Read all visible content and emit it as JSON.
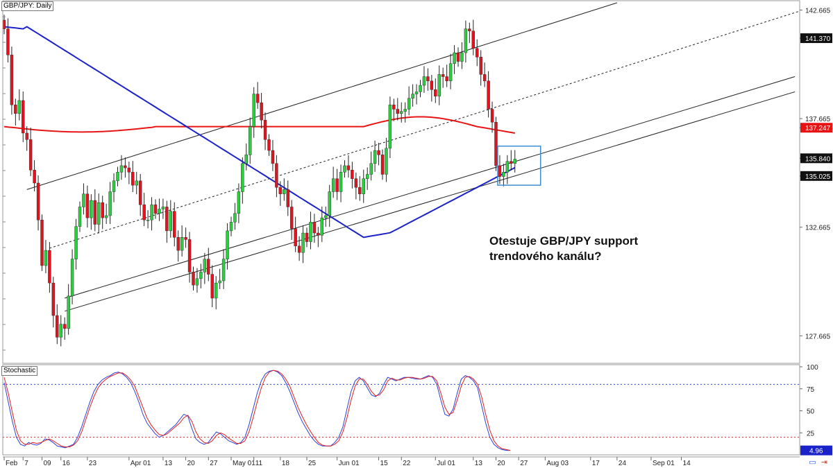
{
  "header": {
    "symbol_label": "GBP/JPY: Daily"
  },
  "annotation": {
    "line1": "Otestuje GBP/JPY support",
    "line2": "trendového kanálu?"
  },
  "stochastic_panel": {
    "label": "Stochastic"
  },
  "icons": {
    "layers": "layers-icon",
    "arrow": "arrow-icon"
  },
  "colors": {
    "bull": "#2ecc40",
    "bear": "#e0141e",
    "ma_fast": "#1a23c9",
    "ma_slow": "#e81414",
    "stoch_k": "#2a3fe0",
    "stoch_d": "#e01e1e",
    "highlight_box": "#3b8fd6",
    "channel": "#222222"
  },
  "chart_data": [
    {
      "type": "candlestick",
      "title": "GBP/JPY: Daily",
      "ylim": [
        126.4,
        143.0
      ],
      "y_ticks": [
        "142.665",
        "141.370",
        "137.665",
        "137.247",
        "135.840",
        "135.025",
        "132.665",
        "127.665"
      ],
      "y_tick_values": [
        142.665,
        141.37,
        137.665,
        137.247,
        135.84,
        135.025,
        132.665,
        127.665
      ],
      "price_tags": [
        {
          "label": "141.370",
          "value": 141.37,
          "style": "dark"
        },
        {
          "label": "137.247",
          "value": 137.247,
          "style": "red"
        },
        {
          "label": "135.840",
          "value": 135.84,
          "style": "dark"
        },
        {
          "label": "135.025",
          "value": 135.025,
          "style": "dark"
        }
      ],
      "x_ticks": [
        "Feb",
        "7",
        "09",
        "16",
        "23",
        "Apr 01",
        "13",
        "20",
        "27",
        "May 01",
        "11",
        "18",
        "25",
        "Jun 01",
        "15",
        "22",
        "Jul 01",
        "13",
        "20",
        "27",
        "Aug 03",
        "17",
        "24",
        "Sep 01",
        "14"
      ],
      "x_tick_index": [
        0,
        5,
        10,
        15,
        22,
        33,
        42,
        48,
        54,
        60,
        66,
        73,
        80,
        88,
        99,
        105,
        114,
        124,
        130,
        136,
        143,
        155,
        162,
        171,
        179
      ],
      "closes": [
        141.8,
        140.6,
        138.3,
        137.9,
        138.5,
        137.0,
        136.7,
        135.3,
        134.7,
        133.0,
        130.9,
        131.6,
        130.1,
        128.6,
        127.6,
        128.2,
        128.0,
        129.5,
        131.2,
        132.7,
        133.6,
        134.2,
        133.1,
        133.9,
        132.8,
        133.8,
        133.1,
        133.2,
        134.3,
        134.8,
        135.2,
        135.5,
        135.4,
        135.2,
        134.6,
        134.8,
        133.7,
        133.0,
        133.0,
        133.7,
        133.3,
        133.5,
        133.6,
        132.5,
        133.4,
        132.2,
        131.6,
        132.2,
        132.1,
        130.6,
        130.0,
        130.3,
        130.6,
        131.2,
        130.5,
        129.4,
        130.1,
        130.2,
        131.2,
        132.5,
        132.9,
        133.3,
        134.3,
        135.6,
        136.0,
        137.3,
        138.8,
        138.4,
        137.6,
        136.7,
        136.2,
        135.6,
        134.5,
        134.2,
        134.4,
        133.6,
        132.6,
        131.8,
        131.5,
        132.4,
        132.0,
        132.9,
        132.4,
        132.3,
        133.1,
        133.2,
        134.3,
        134.9,
        134.3,
        135.2,
        135.5,
        135.3,
        134.9,
        134.5,
        134.2,
        134.9,
        135.1,
        135.6,
        136.2,
        136.0,
        135.1,
        136.3,
        138.3,
        138.1,
        137.9,
        138.0,
        138.1,
        138.6,
        138.8,
        138.9,
        139.2,
        139.6,
        139.4,
        139.0,
        138.7,
        139.7,
        139.6,
        139.4,
        140.2,
        140.7,
        140.3,
        140.7,
        141.8,
        141.7,
        140.9,
        140.5,
        139.7,
        139.4,
        138.1,
        137.5,
        135.5,
        135.0,
        135.2,
        135.7,
        135.6,
        135.8
      ],
      "opens_rule": "each candle opens at the previous candle's close",
      "sma_fast": {
        "name": "",
        "color": "#1a23c9"
      },
      "sma_slow": {
        "name": "",
        "color": "#e81414"
      },
      "channel_lines": [
        "upper",
        "middle (dashed)",
        "lower",
        "extended parallel"
      ],
      "highlight": "blue box around last candles near the lower channel line"
    },
    {
      "type": "line",
      "title": "Stochastic",
      "ylim": [
        0,
        100
      ],
      "y_ticks": [
        "100",
        "75",
        "50",
        "25"
      ],
      "y_tick_values": [
        100,
        75,
        50,
        25
      ],
      "current_value_label": "4.96",
      "levels": [
        80,
        20
      ],
      "series": [
        {
          "color": "#2a3fe0",
          "values": [
            82,
            60,
            38,
            20,
            12,
            10,
            14,
            12,
            11,
            13,
            18,
            17,
            14,
            10,
            9,
            8,
            10,
            12,
            20,
            32,
            46,
            60,
            72,
            80,
            85,
            88,
            90,
            93,
            94,
            92,
            88,
            82,
            72,
            60,
            46,
            36,
            30,
            24,
            20,
            22,
            26,
            30,
            34,
            40,
            46,
            44,
            30,
            18,
            14,
            12,
            14,
            20,
            26,
            24,
            20,
            16,
            14,
            12,
            14,
            20,
            34,
            52,
            70,
            84,
            92,
            95,
            96,
            94,
            90,
            82,
            72,
            60,
            48,
            38,
            30,
            22,
            16,
            12,
            10,
            10,
            10,
            14,
            20,
            32,
            52,
            72,
            84,
            88,
            84,
            76,
            68,
            66,
            70,
            80,
            88,
            86,
            84,
            86,
            88,
            88,
            87,
            86,
            86,
            88,
            90,
            88,
            80,
            62,
            46,
            44,
            52,
            70,
            86,
            90,
            88,
            84,
            76,
            56,
            36,
            20,
            12,
            8,
            6,
            5,
            5
          ]
        },
        {
          "color": "#e01e1e",
          "values": [
            88,
            70,
            48,
            28,
            16,
            12,
            12,
            14,
            13,
            14,
            16,
            18,
            16,
            13,
            10,
            9,
            9,
            11,
            16,
            26,
            40,
            54,
            66,
            76,
            82,
            86,
            89,
            91,
            93,
            93,
            90,
            85,
            78,
            66,
            54,
            42,
            34,
            28,
            23,
            22,
            24,
            28,
            32,
            36,
            42,
            45,
            38,
            26,
            18,
            14,
            13,
            16,
            22,
            25,
            23,
            19,
            16,
            13,
            13,
            16,
            26,
            42,
            60,
            76,
            88,
            94,
            96,
            95,
            92,
            86,
            78,
            66,
            54,
            44,
            35,
            27,
            20,
            14,
            11,
            10,
            10,
            12,
            16,
            26,
            42,
            62,
            78,
            86,
            86,
            80,
            72,
            67,
            68,
            74,
            84,
            87,
            85,
            85,
            87,
            88,
            88,
            87,
            86,
            87,
            89,
            89,
            84,
            70,
            54,
            46,
            48,
            62,
            78,
            88,
            89,
            86,
            80,
            66,
            46,
            28,
            16,
            10,
            7,
            6,
            5
          ]
        }
      ]
    }
  ]
}
